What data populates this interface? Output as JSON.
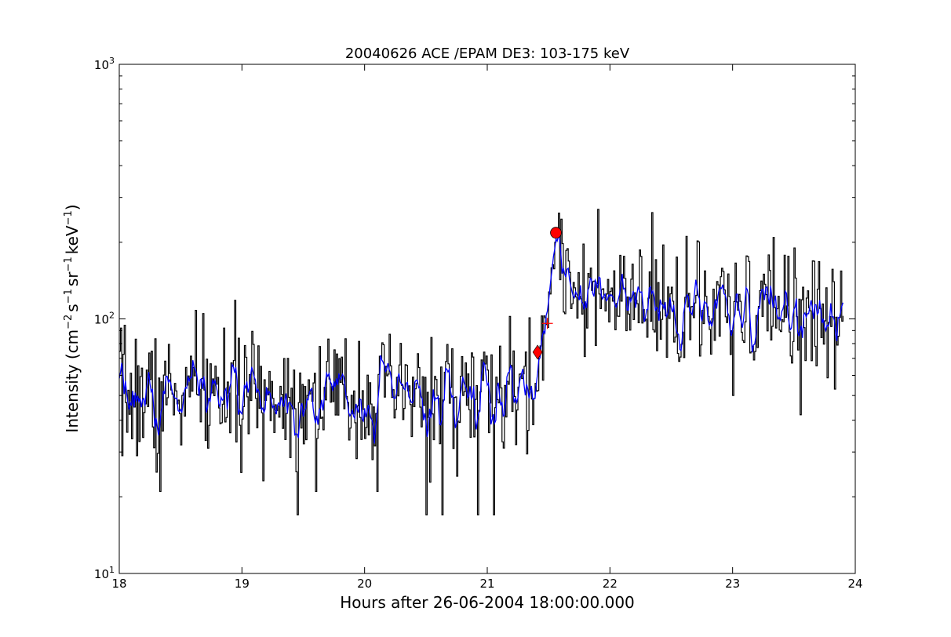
{
  "chart_data": {
    "type": "line",
    "title": "20040626 ACE /EPAM DE3: 103-175 keV",
    "xlabel": "Hours after 26-06-2004 18:00:00.000",
    "ylabel_parts": [
      "Intensity (cm",
      "−2",
      "s",
      "−1",
      "sr",
      "−1",
      "keV",
      "−1",
      ")"
    ],
    "xlim": [
      18,
      24
    ],
    "ylim": [
      10,
      1000
    ],
    "yscale": "log",
    "x_ticks": [
      "18",
      "19",
      "20",
      "21",
      "22",
      "23",
      "24"
    ],
    "y_ticks": [
      {
        "base": "10",
        "exp": "1",
        "value": 10
      },
      {
        "base": "10",
        "exp": "2",
        "value": 100
      },
      {
        "base": "10",
        "exp": "3",
        "value": 1000
      }
    ],
    "series": [
      {
        "color": "#000000",
        "style": "steps",
        "x_start": 18.0,
        "x_step": 0.01,
        "baseline": {
          "segments": [
            [
              18.0,
              50
            ],
            [
              21.3,
              50
            ],
            [
              21.42,
              58
            ],
            [
              21.5,
              125
            ],
            [
              21.58,
              190
            ],
            [
              21.7,
              145
            ],
            [
              21.9,
              115
            ],
            [
              22.3,
              112
            ],
            [
              23.0,
              102
            ],
            [
              23.4,
              110
            ],
            [
              23.9,
              103
            ]
          ]
        },
        "noise_log_sigma": 0.12,
        "seed": 7,
        "anchors": [
          [
            18.01,
            92
          ],
          [
            18.02,
            29
          ],
          [
            18.3,
            25
          ],
          [
            18.33,
            21
          ],
          [
            18.62,
            108
          ],
          [
            18.85,
            92
          ],
          [
            19.45,
            17
          ],
          [
            19.6,
            21
          ],
          [
            20.1,
            21
          ],
          [
            20.5,
            17
          ],
          [
            20.63,
            17
          ],
          [
            20.92,
            17
          ],
          [
            21.05,
            17
          ],
          [
            21.48,
            95
          ],
          [
            21.55,
            200
          ],
          [
            21.56,
            210
          ],
          [
            22.38,
            75
          ],
          [
            23.0,
            50
          ],
          [
            23.3,
            155
          ],
          [
            23.5,
            190
          ],
          [
            23.55,
            42
          ],
          [
            23.83,
            53
          ]
        ]
      },
      {
        "color": "#0000ff",
        "style": "line",
        "x_start": 18.0,
        "x_step": 0.01,
        "smoothing_window": 5,
        "derived_from": 0
      }
    ],
    "markers": [
      {
        "shape": "diamond",
        "x": 21.41,
        "y": 74,
        "color": "#ff0000"
      },
      {
        "shape": "circle",
        "x": 21.56,
        "y": 218,
        "color": "#ff0000"
      },
      {
        "shape": "plus",
        "x": 21.49,
        "y": 96,
        "color": "#ff0000"
      }
    ],
    "grid": false,
    "legend": "none"
  }
}
